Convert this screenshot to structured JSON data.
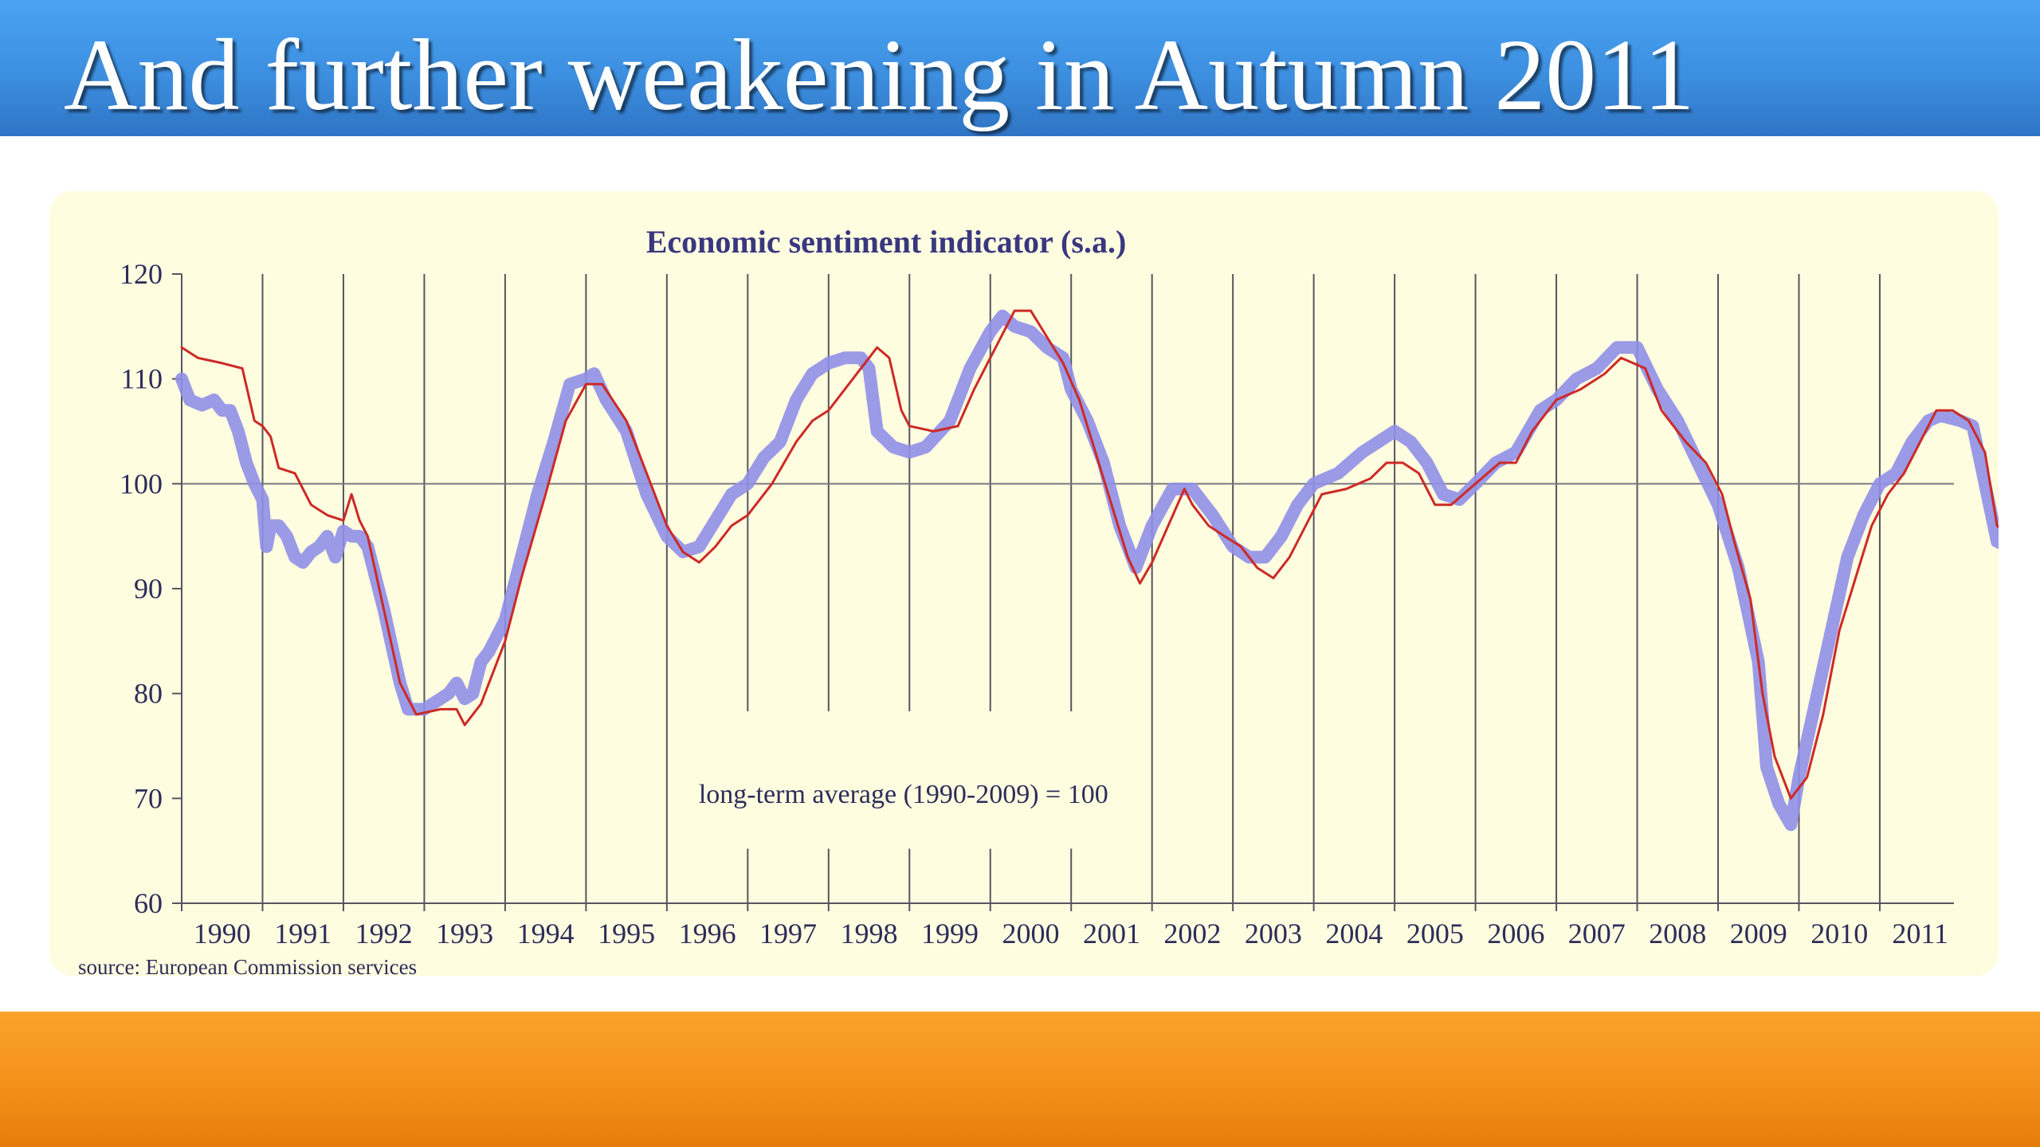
{
  "slide": {
    "title": "And further weakening in Autumn 2011"
  },
  "colors": {
    "title_bar": "#3d8fe0",
    "bottom_bar": "#f3901a",
    "panel_background": "#fffde0",
    "series_blue": "#8f8fe8",
    "series_red": "#cc2a25",
    "axis_text": "#2d2d5a"
  },
  "chart_data": {
    "type": "line",
    "title": "Economic  sentiment  indicator  (s.a.)",
    "xlabel": "",
    "ylabel": "",
    "ylim": [
      60,
      120
    ],
    "xlim": [
      1990.0,
      2011.917
    ],
    "yticks": [
      "120",
      "110",
      "100",
      "90",
      "80",
      "70",
      "60"
    ],
    "xticks": [
      "1990",
      "1991",
      "1992",
      "1993",
      "1994",
      "1995",
      "1996",
      "1997",
      "1998",
      "1999",
      "2000",
      "2001",
      "2002",
      "2003",
      "2004",
      "2005",
      "2006",
      "2007",
      "2008",
      "2009",
      "2010",
      "2011"
    ],
    "grid": "vertical lines at each year, horizontal reference line at 100",
    "reference_line": 100,
    "annotation": "long-term average (1990-2009) = 100",
    "source": "source:  European Commission services",
    "series": [
      {
        "color": "#8f8fe8",
        "style": "thick",
        "points": [
          [
            1990.0,
            110
          ],
          [
            1990.1,
            108
          ],
          [
            1990.25,
            107.5
          ],
          [
            1990.4,
            108
          ],
          [
            1990.5,
            107
          ],
          [
            1990.6,
            107
          ],
          [
            1990.7,
            105
          ],
          [
            1990.8,
            102
          ],
          [
            1990.9,
            100
          ],
          [
            1991.0,
            98.5
          ],
          [
            1991.05,
            94
          ],
          [
            1991.1,
            96
          ],
          [
            1991.2,
            96
          ],
          [
            1991.3,
            95
          ],
          [
            1991.4,
            93
          ],
          [
            1991.5,
            92.5
          ],
          [
            1991.6,
            93.5
          ],
          [
            1991.7,
            94
          ],
          [
            1991.8,
            95
          ],
          [
            1991.9,
            93
          ],
          [
            1992.0,
            95.5
          ],
          [
            1992.1,
            95
          ],
          [
            1992.2,
            95
          ],
          [
            1992.3,
            94
          ],
          [
            1992.5,
            88
          ],
          [
            1992.7,
            81
          ],
          [
            1992.8,
            78.5
          ],
          [
            1993.0,
            78.5
          ],
          [
            1993.1,
            79
          ],
          [
            1993.3,
            80
          ],
          [
            1993.4,
            81
          ],
          [
            1993.5,
            79.5
          ],
          [
            1993.6,
            80
          ],
          [
            1993.7,
            83
          ],
          [
            1993.8,
            84
          ],
          [
            1994.0,
            87
          ],
          [
            1994.2,
            93
          ],
          [
            1994.4,
            99
          ],
          [
            1994.6,
            104
          ],
          [
            1994.8,
            109.5
          ],
          [
            1995.0,
            110
          ],
          [
            1995.1,
            110.5
          ],
          [
            1995.25,
            108
          ],
          [
            1995.5,
            105
          ],
          [
            1995.75,
            99
          ],
          [
            1996.0,
            95
          ],
          [
            1996.2,
            93.5
          ],
          [
            1996.4,
            94
          ],
          [
            1996.6,
            96.5
          ],
          [
            1996.8,
            99
          ],
          [
            1997.0,
            100
          ],
          [
            1997.2,
            102.5
          ],
          [
            1997.4,
            104
          ],
          [
            1997.6,
            108
          ],
          [
            1997.8,
            110.5
          ],
          [
            1998.0,
            111.5
          ],
          [
            1998.2,
            112
          ],
          [
            1998.4,
            112
          ],
          [
            1998.5,
            111
          ],
          [
            1998.6,
            105
          ],
          [
            1998.8,
            103.5
          ],
          [
            1999.0,
            103
          ],
          [
            1999.2,
            103.5
          ],
          [
            1999.5,
            106
          ],
          [
            1999.75,
            111
          ],
          [
            2000.0,
            114.5
          ],
          [
            2000.15,
            116
          ],
          [
            2000.3,
            115
          ],
          [
            2000.5,
            114.5
          ],
          [
            2000.7,
            113
          ],
          [
            2000.9,
            112
          ],
          [
            2001.0,
            109
          ],
          [
            2001.2,
            106
          ],
          [
            2001.4,
            102
          ],
          [
            2001.6,
            96
          ],
          [
            2001.8,
            92
          ],
          [
            2002.0,
            96
          ],
          [
            2002.25,
            99.5
          ],
          [
            2002.5,
            99.5
          ],
          [
            2002.75,
            97
          ],
          [
            2003.0,
            94
          ],
          [
            2003.2,
            93
          ],
          [
            2003.4,
            93
          ],
          [
            2003.6,
            95
          ],
          [
            2003.8,
            98
          ],
          [
            2004.0,
            100
          ],
          [
            2004.3,
            101
          ],
          [
            2004.6,
            103
          ],
          [
            2004.8,
            104
          ],
          [
            2005.0,
            105
          ],
          [
            2005.2,
            104
          ],
          [
            2005.4,
            102
          ],
          [
            2005.6,
            99
          ],
          [
            2005.8,
            98.5
          ],
          [
            2006.0,
            100
          ],
          [
            2006.25,
            102
          ],
          [
            2006.5,
            103
          ],
          [
            2006.8,
            107
          ],
          [
            2007.0,
            108
          ],
          [
            2007.25,
            110
          ],
          [
            2007.5,
            111
          ],
          [
            2007.75,
            113
          ],
          [
            2008.0,
            113
          ],
          [
            2008.25,
            109
          ],
          [
            2008.5,
            106
          ],
          [
            2008.75,
            102
          ],
          [
            2009.0,
            98
          ],
          [
            2009.25,
            92
          ],
          [
            2009.5,
            83
          ],
          [
            2009.6,
            73
          ],
          [
            2009.75,
            69.5
          ],
          [
            2009.9,
            67.5
          ],
          [
            2010.0,
            72
          ],
          [
            2010.2,
            79
          ],
          [
            2010.4,
            86
          ],
          [
            2010.6,
            93
          ],
          [
            2010.8,
            97
          ],
          [
            2011.0,
            100
          ],
          [
            2011.2,
            101
          ],
          [
            2011.4,
            104
          ],
          [
            2011.6,
            106
          ],
          [
            2011.75,
            106.5
          ],
          [
            2012.0,
            106
          ],
          [
            2012.15,
            105.5
          ],
          [
            2012.3,
            100
          ],
          [
            2012.45,
            94.5
          ],
          [
            2012.6,
            94
          ]
        ]
      },
      {
        "color": "#cc2a25",
        "style": "thin",
        "points": [
          [
            1990.0,
            113
          ],
          [
            1990.2,
            112
          ],
          [
            1990.5,
            111.5
          ],
          [
            1990.75,
            111
          ],
          [
            1990.9,
            106
          ],
          [
            1991.0,
            105.5
          ],
          [
            1991.1,
            104.5
          ],
          [
            1991.2,
            101.5
          ],
          [
            1991.4,
            101
          ],
          [
            1991.6,
            98
          ],
          [
            1991.8,
            97
          ],
          [
            1992.0,
            96.5
          ],
          [
            1992.1,
            99
          ],
          [
            1992.2,
            96.5
          ],
          [
            1992.3,
            95
          ],
          [
            1992.5,
            88
          ],
          [
            1992.7,
            81
          ],
          [
            1992.9,
            78
          ],
          [
            1993.2,
            78.5
          ],
          [
            1993.4,
            78.5
          ],
          [
            1993.5,
            77
          ],
          [
            1993.7,
            79
          ],
          [
            1994.0,
            85
          ],
          [
            1994.2,
            91
          ],
          [
            1994.5,
            99
          ],
          [
            1994.75,
            106
          ],
          [
            1995.0,
            109.5
          ],
          [
            1995.2,
            109.5
          ],
          [
            1995.5,
            106
          ],
          [
            1995.75,
            101
          ],
          [
            1996.0,
            96
          ],
          [
            1996.2,
            93.5
          ],
          [
            1996.4,
            92.5
          ],
          [
            1996.6,
            94
          ],
          [
            1996.8,
            96
          ],
          [
            1997.0,
            97
          ],
          [
            1997.3,
            100
          ],
          [
            1997.6,
            104
          ],
          [
            1997.8,
            106
          ],
          [
            1998.0,
            107
          ],
          [
            1998.3,
            110
          ],
          [
            1998.6,
            113
          ],
          [
            1998.75,
            112
          ],
          [
            1998.9,
            107
          ],
          [
            1999.0,
            105.5
          ],
          [
            1999.3,
            105
          ],
          [
            1999.6,
            105.5
          ],
          [
            1999.8,
            109
          ],
          [
            2000.0,
            112
          ],
          [
            2000.3,
            116.5
          ],
          [
            2000.5,
            116.5
          ],
          [
            2000.7,
            114
          ],
          [
            2000.9,
            111.5
          ],
          [
            2001.1,
            108
          ],
          [
            2001.3,
            103
          ],
          [
            2001.5,
            98
          ],
          [
            2001.7,
            93
          ],
          [
            2001.85,
            90.5
          ],
          [
            2002.0,
            92.5
          ],
          [
            2002.2,
            96
          ],
          [
            2002.4,
            99.5
          ],
          [
            2002.5,
            98
          ],
          [
            2002.7,
            96
          ],
          [
            2002.9,
            95
          ],
          [
            2003.1,
            94
          ],
          [
            2003.3,
            92
          ],
          [
            2003.5,
            91
          ],
          [
            2003.7,
            93
          ],
          [
            2003.9,
            96
          ],
          [
            2004.1,
            99
          ],
          [
            2004.4,
            99.5
          ],
          [
            2004.7,
            100.5
          ],
          [
            2004.9,
            102
          ],
          [
            2005.1,
            102
          ],
          [
            2005.3,
            101
          ],
          [
            2005.5,
            98
          ],
          [
            2005.7,
            98
          ],
          [
            2006.0,
            100
          ],
          [
            2006.3,
            102
          ],
          [
            2006.5,
            102
          ],
          [
            2006.7,
            105
          ],
          [
            2007.0,
            108
          ],
          [
            2007.3,
            109
          ],
          [
            2007.6,
            110.5
          ],
          [
            2007.8,
            112
          ],
          [
            2008.1,
            111
          ],
          [
            2008.3,
            107
          ],
          [
            2008.6,
            104
          ],
          [
            2008.85,
            102
          ],
          [
            2009.05,
            99
          ],
          [
            2009.2,
            94.5
          ],
          [
            2009.4,
            89
          ],
          [
            2009.55,
            80
          ],
          [
            2009.7,
            74
          ],
          [
            2009.9,
            70
          ],
          [
            2010.1,
            72
          ],
          [
            2010.3,
            78
          ],
          [
            2010.5,
            86
          ],
          [
            2010.7,
            91
          ],
          [
            2010.9,
            96
          ],
          [
            2011.1,
            99
          ],
          [
            2011.3,
            101
          ],
          [
            2011.5,
            104
          ],
          [
            2011.7,
            107
          ],
          [
            2011.9,
            107
          ],
          [
            2012.1,
            106
          ],
          [
            2012.3,
            103
          ],
          [
            2012.45,
            96
          ],
          [
            2012.6,
            95
          ]
        ]
      }
    ]
  }
}
